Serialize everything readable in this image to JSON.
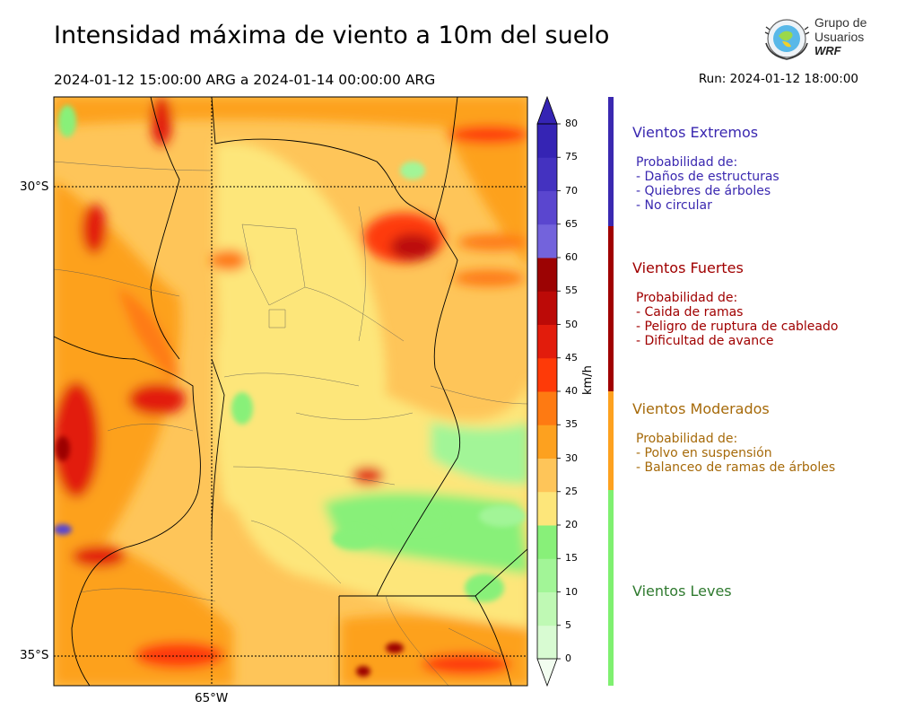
{
  "header": {
    "title": "Intensidad máxima de viento a 10m del suelo",
    "period": "2024-01-12 15:00:00 ARG  a  2024-01-14 00:00:00 ARG",
    "run": "Run: 2024-01-12 18:00:00"
  },
  "logo": {
    "line1": "Grupo de",
    "line2": "Usuarios",
    "line3": "WRF",
    "icon": "globe-emblem-icon"
  },
  "map": {
    "lat_labels": [
      "30°S",
      "35°S"
    ],
    "lon_labels": [
      "65°W"
    ]
  },
  "colorbar": {
    "unit": "km/h",
    "ticks": [
      "0",
      "5",
      "10",
      "15",
      "20",
      "25",
      "30",
      "35",
      "40",
      "45",
      "50",
      "55",
      "60",
      "65",
      "70",
      "75",
      "80"
    ],
    "colors": [
      "#f2fdf0",
      "#d8fbd2",
      "#bff9b4",
      "#a2f597",
      "#88f079",
      "#fde67a",
      "#fec559",
      "#fda11f",
      "#fe7a12",
      "#fe3a08",
      "#e21c0c",
      "#bc0a07",
      "#9c0303",
      "#7363dc",
      "#5a46cf",
      "#4432c0",
      "#3524b4"
    ]
  },
  "categories": [
    {
      "title": "Vientos Extremos",
      "color": "#3a28b0",
      "lines": [
        "Probabilidad de:",
        "- Daños de estructuras",
        "- Quiebres de árboles",
        "- No circular"
      ]
    },
    {
      "title": "Vientos Fuertes",
      "color": "#a00000",
      "lines": [
        "Probabilidad de:",
        "- Caida de ramas",
        "- Peligro de ruptura de cableado",
        "- Dificultad de avance"
      ]
    },
    {
      "title": "Vientos Moderados",
      "color": "#a66a0a",
      "lines": [
        "Probabilidad de:",
        "- Polvo en suspensión",
        "- Balanceo de ramas de árboles"
      ]
    },
    {
      "title": "Vientos Leves",
      "color": "#2f7a2f",
      "lines": []
    }
  ]
}
